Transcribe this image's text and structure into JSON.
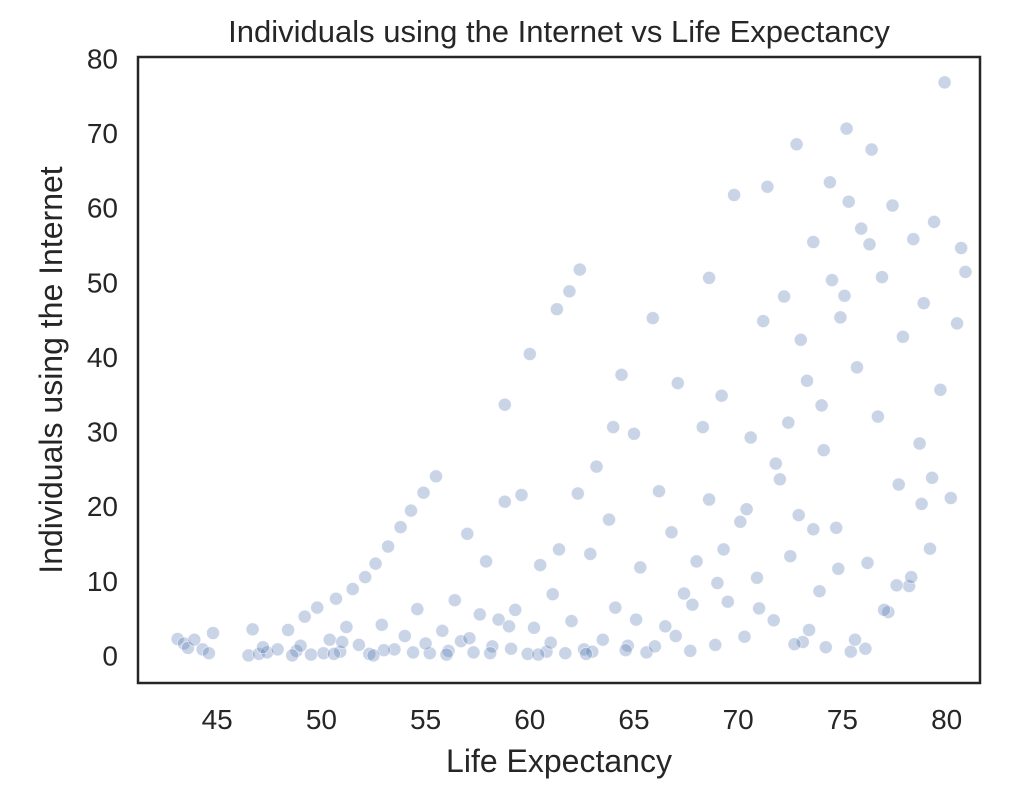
{
  "chart_data": {
    "type": "scatter",
    "title": "Individuals using the Internet vs Life Expectancy",
    "xlabel": "Life Expectancy",
    "ylabel": "Individuals using the Internet",
    "xlim": [
      41.2,
      81.6
    ],
    "ylim": [
      -3.7,
      80.2
    ],
    "xticks": [
      45,
      50,
      55,
      60,
      65,
      70,
      75,
      80
    ],
    "yticks": [
      0,
      10,
      20,
      30,
      40,
      50,
      60,
      70,
      80
    ],
    "grid": false,
    "legend": "none",
    "marker_color": "#4c72b0",
    "marker_opacity": 0.3,
    "series": [
      {
        "points": [
          [
            43.1,
            2.2
          ],
          [
            43.4,
            1.6
          ],
          [
            43.6,
            1.0
          ],
          [
            43.9,
            2.1
          ],
          [
            44.3,
            0.8
          ],
          [
            44.6,
            0.3
          ],
          [
            44.8,
            3.0
          ],
          [
            46.5,
            0.0
          ],
          [
            46.7,
            3.5
          ],
          [
            47.0,
            0.2
          ],
          [
            47.4,
            0.4
          ],
          [
            47.9,
            0.8
          ],
          [
            48.4,
            3.4
          ],
          [
            48.8,
            0.6
          ],
          [
            49.2,
            5.2
          ],
          [
            49.5,
            0.1
          ],
          [
            49.8,
            6.4
          ],
          [
            50.1,
            0.3
          ],
          [
            50.4,
            2.1
          ],
          [
            50.7,
            7.6
          ],
          [
            50.9,
            0.5
          ],
          [
            51.2,
            3.8
          ],
          [
            51.5,
            8.9
          ],
          [
            51.8,
            1.4
          ],
          [
            52.1,
            10.5
          ],
          [
            52.3,
            0.2
          ],
          [
            52.6,
            12.3
          ],
          [
            52.9,
            4.1
          ],
          [
            53.2,
            14.6
          ],
          [
            53.5,
            0.8
          ],
          [
            53.8,
            17.2
          ],
          [
            54.0,
            2.6
          ],
          [
            54.3,
            19.4
          ],
          [
            54.6,
            6.2
          ],
          [
            54.9,
            21.8
          ],
          [
            55.2,
            0.3
          ],
          [
            55.5,
            24.0
          ],
          [
            55.8,
            3.3
          ],
          [
            56.1,
            0.6
          ],
          [
            56.4,
            7.4
          ],
          [
            56.7,
            1.9
          ],
          [
            57.0,
            16.3
          ],
          [
            57.3,
            0.4
          ],
          [
            57.6,
            5.5
          ],
          [
            57.9,
            12.6
          ],
          [
            58.2,
            1.2
          ],
          [
            58.5,
            4.8
          ],
          [
            58.8,
            20.6
          ],
          [
            59.1,
            0.9
          ],
          [
            59.3,
            6.1
          ],
          [
            59.6,
            21.5
          ],
          [
            59.9,
            0.2
          ],
          [
            60.2,
            3.7
          ],
          [
            60.5,
            12.1
          ],
          [
            60.8,
            0.5
          ],
          [
            61.1,
            8.2
          ],
          [
            61.4,
            14.2
          ],
          [
            61.7,
            0.3
          ],
          [
            62.0,
            4.6
          ],
          [
            62.3,
            21.7
          ],
          [
            62.6,
            0.8
          ],
          [
            62.9,
            13.6
          ],
          [
            63.2,
            25.3
          ],
          [
            63.5,
            2.1
          ],
          [
            63.8,
            18.2
          ],
          [
            64.1,
            6.4
          ],
          [
            64.4,
            37.6
          ],
          [
            64.7,
            1.3
          ],
          [
            65.0,
            29.7
          ],
          [
            65.3,
            11.8
          ],
          [
            65.6,
            0.4
          ],
          [
            65.9,
            45.2
          ],
          [
            66.2,
            22.0
          ],
          [
            66.5,
            3.9
          ],
          [
            66.8,
            16.5
          ],
          [
            67.1,
            36.5
          ],
          [
            67.4,
            8.3
          ],
          [
            67.7,
            0.6
          ],
          [
            68.0,
            12.6
          ],
          [
            68.3,
            30.6
          ],
          [
            68.6,
            20.9
          ],
          [
            68.9,
            1.4
          ],
          [
            69.2,
            34.8
          ],
          [
            69.5,
            7.2
          ],
          [
            69.8,
            61.7
          ],
          [
            70.1,
            17.9
          ],
          [
            70.3,
            2.5
          ],
          [
            70.6,
            29.2
          ],
          [
            70.9,
            10.4
          ],
          [
            71.2,
            44.8
          ],
          [
            71.4,
            62.8
          ],
          [
            71.7,
            4.7
          ],
          [
            72.0,
            23.6
          ],
          [
            72.2,
            48.1
          ],
          [
            72.5,
            13.3
          ],
          [
            72.8,
            68.5
          ],
          [
            73.1,
            1.8
          ],
          [
            73.3,
            36.8
          ],
          [
            73.6,
            55.4
          ],
          [
            73.9,
            8.6
          ],
          [
            74.1,
            27.5
          ],
          [
            74.4,
            63.4
          ],
          [
            74.7,
            17.1
          ],
          [
            74.9,
            45.3
          ],
          [
            75.2,
            70.6
          ],
          [
            75.4,
            0.5
          ],
          [
            75.7,
            38.6
          ],
          [
            75.9,
            57.2
          ],
          [
            76.2,
            12.4
          ],
          [
            76.4,
            67.8
          ],
          [
            76.7,
            32.0
          ],
          [
            76.9,
            50.7
          ],
          [
            77.2,
            5.8
          ],
          [
            77.4,
            60.3
          ],
          [
            77.7,
            22.9
          ],
          [
            77.9,
            42.7
          ],
          [
            78.2,
            9.3
          ],
          [
            78.4,
            55.8
          ],
          [
            78.7,
            28.4
          ],
          [
            78.9,
            47.2
          ],
          [
            79.2,
            14.3
          ],
          [
            79.4,
            58.1
          ],
          [
            79.7,
            35.6
          ],
          [
            79.9,
            76.8
          ],
          [
            80.2,
            21.1
          ],
          [
            80.5,
            44.5
          ],
          [
            80.7,
            54.6
          ],
          [
            80.9,
            51.4
          ],
          [
            47.2,
            1.1
          ],
          [
            49.0,
            1.3
          ],
          [
            51.0,
            1.8
          ],
          [
            53.0,
            0.7
          ],
          [
            55.0,
            1.6
          ],
          [
            57.1,
            2.3
          ],
          [
            59.0,
            3.9
          ],
          [
            61.0,
            1.7
          ],
          [
            63.0,
            0.5
          ],
          [
            65.1,
            4.8
          ],
          [
            67.0,
            2.6
          ],
          [
            69.0,
            9.7
          ],
          [
            71.0,
            6.3
          ],
          [
            72.9,
            18.8
          ],
          [
            74.8,
            11.6
          ],
          [
            60.0,
            40.4
          ],
          [
            58.8,
            33.6
          ],
          [
            61.3,
            46.4
          ],
          [
            62.4,
            51.7
          ],
          [
            61.9,
            48.8
          ],
          [
            68.6,
            50.6
          ],
          [
            64.0,
            30.6
          ],
          [
            73.6,
            16.9
          ],
          [
            74.5,
            50.3
          ],
          [
            75.1,
            48.2
          ],
          [
            75.3,
            60.8
          ],
          [
            76.3,
            55.1
          ],
          [
            73.0,
            42.3
          ],
          [
            74.0,
            33.5
          ],
          [
            72.4,
            31.2
          ],
          [
            71.8,
            25.7
          ],
          [
            70.4,
            19.6
          ],
          [
            69.3,
            14.2
          ],
          [
            67.8,
            6.8
          ],
          [
            66.0,
            1.2
          ],
          [
            64.6,
            0.7
          ],
          [
            62.7,
            0.2
          ],
          [
            60.4,
            0.1
          ],
          [
            58.1,
            0.3
          ],
          [
            56.0,
            0.1
          ],
          [
            54.4,
            0.4
          ],
          [
            52.5,
            0.0
          ],
          [
            50.6,
            0.2
          ],
          [
            48.6,
            0.0
          ],
          [
            77.0,
            6.1
          ],
          [
            77.6,
            9.4
          ],
          [
            78.3,
            10.5
          ],
          [
            78.8,
            20.3
          ],
          [
            79.3,
            23.8
          ],
          [
            76.1,
            0.9
          ],
          [
            75.6,
            2.1
          ],
          [
            74.2,
            1.1
          ],
          [
            73.4,
            3.4
          ],
          [
            72.7,
            1.5
          ]
        ]
      }
    ]
  }
}
